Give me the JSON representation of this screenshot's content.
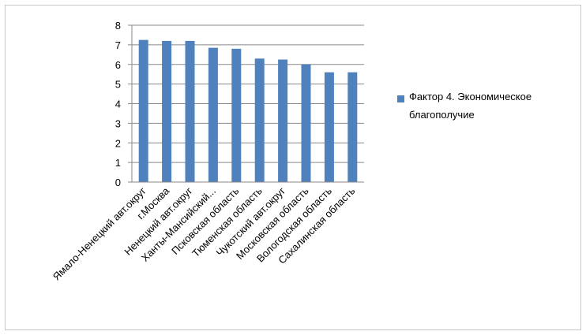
{
  "chart_data": {
    "type": "bar",
    "categories": [
      "Ямало-Ненецкий  авт.округ",
      "г.Москва",
      "Ненецкий  авт.округ",
      "Ханты-Мансийский...",
      "Псковская область",
      "Тюменская область",
      "Чукотский авт.округ",
      "Московская область",
      "Вологодская область",
      "Сахалинская область"
    ],
    "series": [
      {
        "name": "Фактор 4. Экономическое благополучие",
        "values": [
          7.25,
          7.2,
          7.2,
          6.85,
          6.8,
          6.3,
          6.25,
          6.0,
          5.6,
          5.6
        ]
      }
    ],
    "ylim": [
      0,
      8
    ],
    "yticks": [
      "0",
      "1",
      "2",
      "3",
      "4",
      "5",
      "6",
      "7",
      "8"
    ],
    "grid": true,
    "legend_position": "right",
    "colors": {
      "bar": "#4f81bd",
      "grid": "#888888",
      "axis": "#888888"
    }
  }
}
